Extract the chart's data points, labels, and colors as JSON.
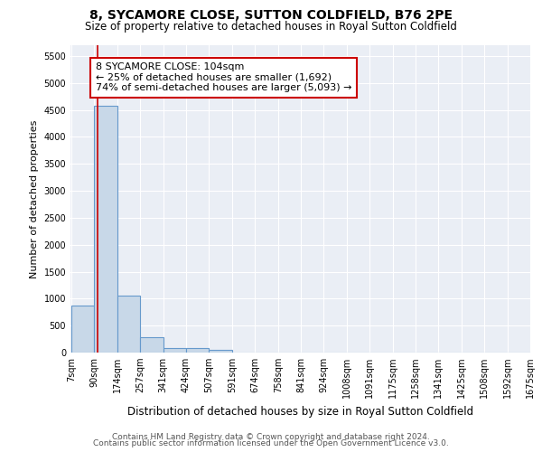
{
  "title": "8, SYCAMORE CLOSE, SUTTON COLDFIELD, B76 2PE",
  "subtitle": "Size of property relative to detached houses in Royal Sutton Coldfield",
  "xlabel": "Distribution of detached houses by size in Royal Sutton Coldfield",
  "ylabel": "Number of detached properties",
  "footer_line1": "Contains HM Land Registry data © Crown copyright and database right 2024.",
  "footer_line2": "Contains public sector information licensed under the Open Government Licence v3.0.",
  "annotation_line1": "8 SYCAMORE CLOSE: 104sqm",
  "annotation_line2": "← 25% of detached houses are smaller (1,692)",
  "annotation_line3": "74% of semi-detached houses are larger (5,093) →",
  "bin_edges": [
    7,
    90,
    174,
    257,
    341,
    424,
    507,
    591,
    674,
    758,
    841,
    924,
    1008,
    1091,
    1175,
    1258,
    1341,
    1425,
    1508,
    1592,
    1675
  ],
  "bar_heights": [
    880,
    4570,
    1060,
    290,
    80,
    80,
    50,
    0,
    0,
    0,
    0,
    0,
    0,
    0,
    0,
    0,
    0,
    0,
    0,
    0
  ],
  "bar_color": "#c8d8e8",
  "bar_edge_color": "#6699cc",
  "vline_color": "#cc0000",
  "vline_x": 104,
  "annotation_box_color": "#cc0000",
  "background_color": "#ffffff",
  "plot_bg_color": "#eaeef5",
  "grid_color": "#ffffff",
  "ylim": [
    0,
    5700
  ],
  "yticks": [
    0,
    500,
    1000,
    1500,
    2000,
    2500,
    3000,
    3500,
    4000,
    4500,
    5000,
    5500
  ],
  "title_fontsize": 10,
  "subtitle_fontsize": 8.5,
  "xlabel_fontsize": 8.5,
  "ylabel_fontsize": 8,
  "tick_fontsize": 7,
  "annotation_fontsize": 8,
  "footer_fontsize": 6.5
}
